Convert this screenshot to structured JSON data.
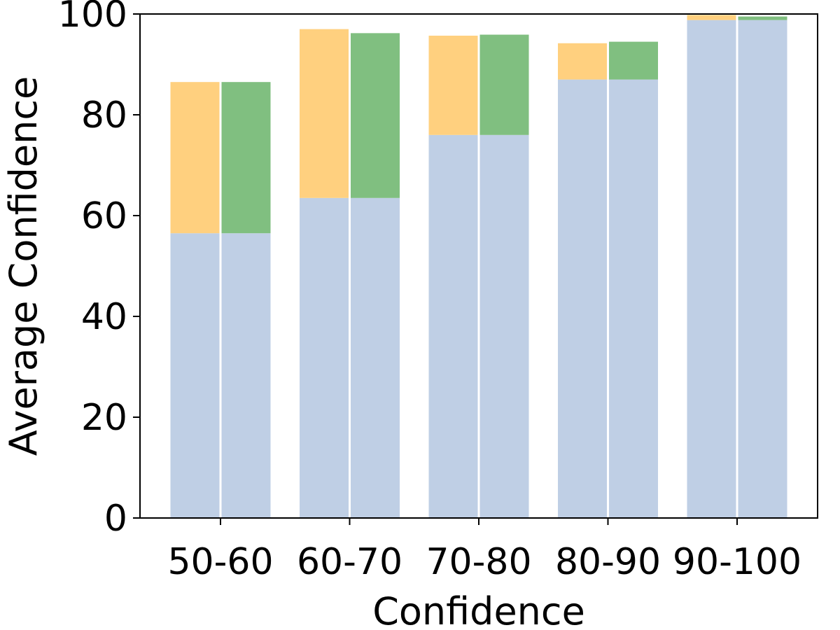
{
  "chart_data": {
    "type": "bar",
    "title": "",
    "xlabel": "Confidence",
    "ylabel": "Average Confidence",
    "ylim": [
      0,
      100
    ],
    "yticks": [
      0,
      20,
      40,
      60,
      80,
      100
    ],
    "grid": false,
    "categories": [
      "50-60",
      "60-70",
      "70-80",
      "80-90",
      "90-100"
    ],
    "base_series": {
      "color": "#bfcfe5",
      "values": [
        56.5,
        63.5,
        76,
        87,
        98.8
      ]
    },
    "bar_groups": [
      {
        "color": "#ffd07f",
        "totals": [
          86.5,
          97,
          95.7,
          94.2,
          99.8
        ]
      },
      {
        "color": "#80bf80",
        "totals": [
          86.5,
          96.2,
          95.9,
          94.5,
          99.5
        ]
      }
    ]
  }
}
